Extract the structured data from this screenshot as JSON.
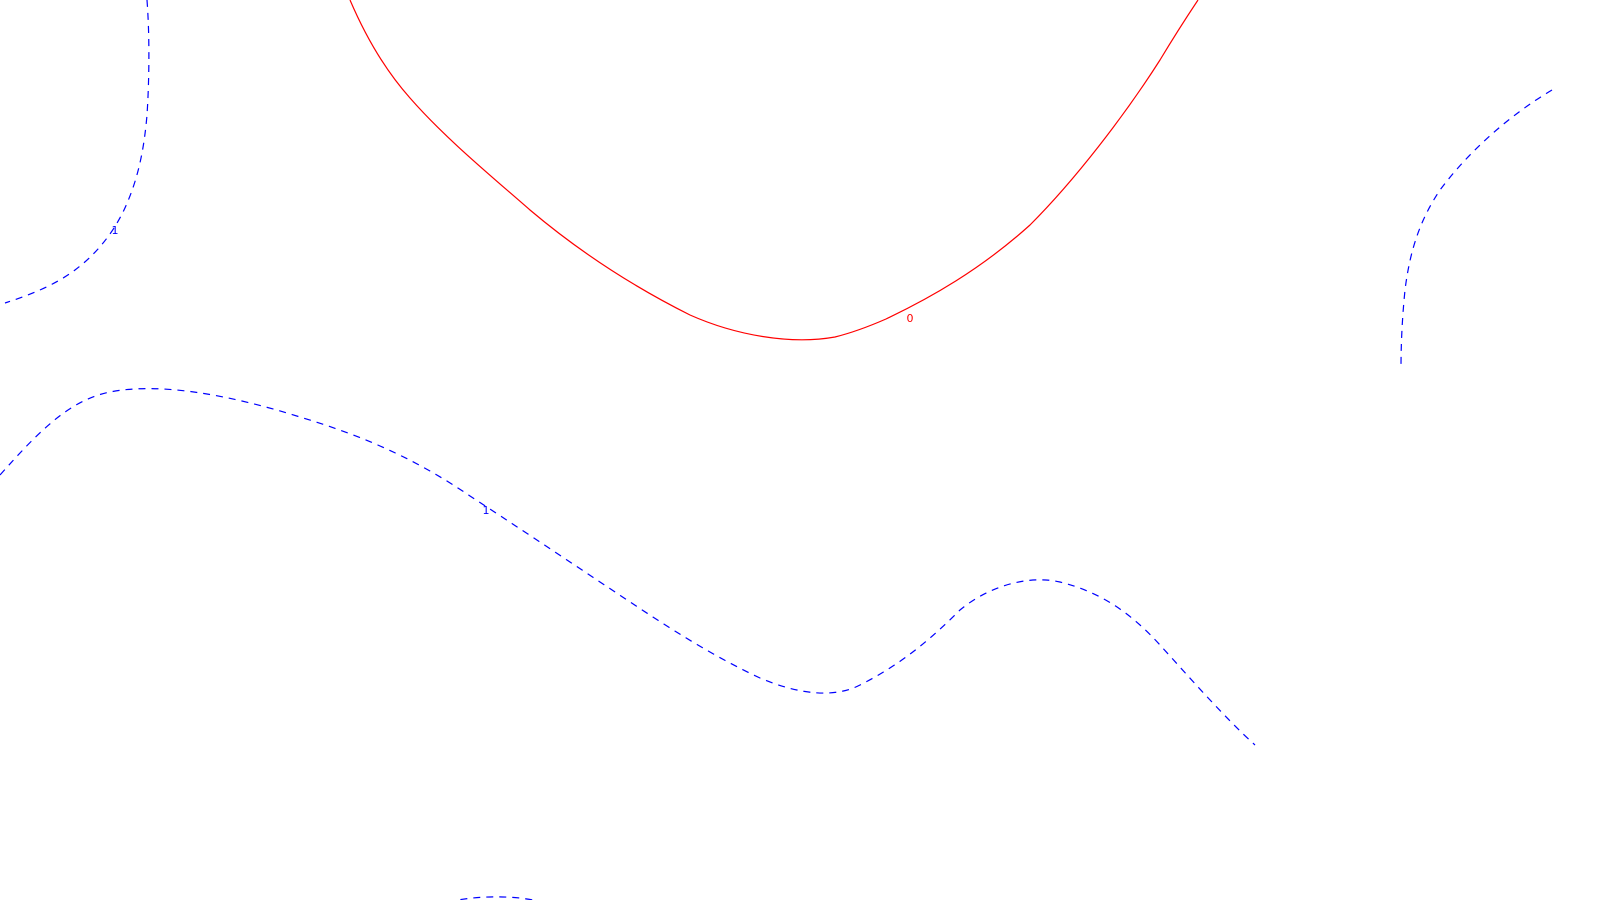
{
  "contours": [
    {
      "id": "level-0-main",
      "level": "0",
      "color": "#ff0000",
      "style": "solid",
      "labeled": true
    },
    {
      "id": "level-1-top-left",
      "level": "1",
      "color": "#0000ff",
      "style": "dashed",
      "labeled": true
    },
    {
      "id": "level-1-middle",
      "level": "1",
      "color": "#0000ff",
      "style": "dashed",
      "labeled": true
    },
    {
      "id": "level-1-right",
      "level": "1",
      "color": "#0000ff",
      "style": "dashed",
      "labeled": false
    },
    {
      "id": "level-1-bottom",
      "level": "1",
      "color": "#0000ff",
      "style": "dashed",
      "labeled": false
    }
  ]
}
